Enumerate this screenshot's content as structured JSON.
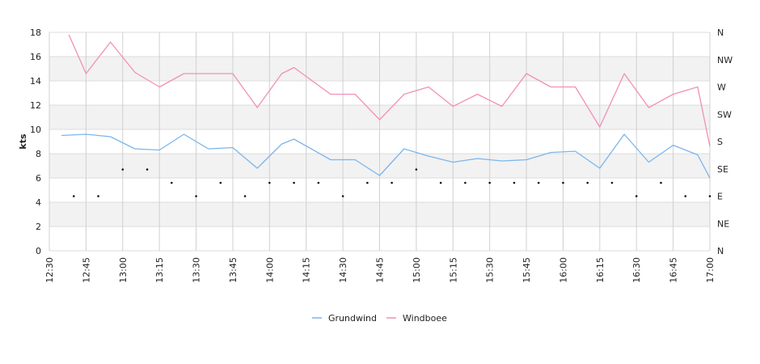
{
  "chart_data": {
    "type": "line",
    "ylabel": "kts",
    "ylim": [
      0,
      18
    ],
    "y_ticks": [
      "0",
      "2",
      "4",
      "6",
      "8",
      "10",
      "12",
      "14",
      "16",
      "18"
    ],
    "right_axis_labels": [
      "N",
      "NE",
      "E",
      "SE",
      "S",
      "SW",
      "W",
      "NW",
      "N"
    ],
    "x_tick_labels": [
      "12:30",
      "12:45",
      "13:00",
      "13:15",
      "13:30",
      "13:45",
      "14:00",
      "14:15",
      "14:30",
      "14:45",
      "15:00",
      "15:15",
      "15:30",
      "15:45",
      "16:00",
      "16:15",
      "16:30",
      "16:45",
      "17:00"
    ],
    "x": [
      "12:40",
      "12:45",
      "12:50",
      "12:55",
      "13:00",
      "13:05",
      "13:10",
      "13:15",
      "13:20",
      "13:25",
      "13:30",
      "13:35",
      "13:40",
      "13:45",
      "13:50",
      "13:55",
      "14:00",
      "14:05",
      "14:10",
      "14:15",
      "14:20",
      "14:25",
      "14:30",
      "14:35",
      "14:40",
      "14:45",
      "14:50",
      "14:55",
      "15:00",
      "15:05",
      "15:10",
      "15:15",
      "15:20",
      "15:25",
      "15:30",
      "15:35",
      "15:40",
      "15:45",
      "15:50",
      "15:55",
      "16:00",
      "16:05",
      "16:10",
      "16:15",
      "16:20",
      "16:25",
      "16:30",
      "16:35",
      "16:40",
      "16:45",
      "16:50",
      "16:55",
      "17:00"
    ],
    "series": [
      {
        "name": "Grundwind",
        "color": "#7cb5ec",
        "x": [
          "12:35",
          "12:45",
          "12:55",
          "13:05",
          "13:15",
          "13:25",
          "13:35",
          "13:45",
          "13:55",
          "14:05",
          "14:10",
          "14:25",
          "14:35",
          "14:45",
          "14:55",
          "15:05",
          "15:15",
          "15:25",
          "15:35",
          "15:45",
          "15:55",
          "16:05",
          "16:15",
          "16:25",
          "16:35",
          "16:45",
          "16:55",
          "17:00"
        ],
        "values": [
          9.5,
          9.6,
          9.4,
          8.4,
          8.3,
          9.6,
          8.4,
          8.5,
          6.8,
          8.8,
          9.2,
          7.5,
          7.5,
          6.2,
          8.4,
          7.8,
          7.3,
          7.6,
          7.4,
          7.5,
          8.1,
          8.2,
          6.8,
          9.6,
          7.3,
          8.7,
          7.9,
          6.0
        ]
      },
      {
        "name": "Windboee",
        "color": "#f28fb8",
        "x": [
          "12:38",
          "12:45",
          "12:55",
          "13:05",
          "13:15",
          "13:25",
          "13:35",
          "13:45",
          "13:55",
          "14:05",
          "14:10",
          "14:25",
          "14:35",
          "14:45",
          "14:55",
          "15:05",
          "15:15",
          "15:25",
          "15:35",
          "15:45",
          "15:55",
          "16:05",
          "16:15",
          "16:25",
          "16:35",
          "16:45",
          "16:55",
          "17:00"
        ],
        "values": [
          17.8,
          14.6,
          17.2,
          14.7,
          13.5,
          14.6,
          14.6,
          14.6,
          11.8,
          14.6,
          15.1,
          12.9,
          12.9,
          10.8,
          12.9,
          13.5,
          11.9,
          12.9,
          11.9,
          14.6,
          13.5,
          13.5,
          10.2,
          14.6,
          11.8,
          12.9,
          13.5,
          8.6
        ]
      }
    ],
    "direction_markers": [
      {
        "x": "12:40",
        "y": 4.5
      },
      {
        "x": "12:50",
        "y": 4.5
      },
      {
        "x": "13:00",
        "y": 6.7
      },
      {
        "x": "13:10",
        "y": 6.7
      },
      {
        "x": "13:20",
        "y": 5.6
      },
      {
        "x": "13:30",
        "y": 4.5
      },
      {
        "x": "13:40",
        "y": 5.6
      },
      {
        "x": "13:50",
        "y": 4.5
      },
      {
        "x": "14:00",
        "y": 5.6
      },
      {
        "x": "14:10",
        "y": 5.6
      },
      {
        "x": "14:20",
        "y": 5.6
      },
      {
        "x": "14:30",
        "y": 4.5
      },
      {
        "x": "14:40",
        "y": 5.6
      },
      {
        "x": "14:50",
        "y": 5.6
      },
      {
        "x": "15:00",
        "y": 6.7
      },
      {
        "x": "15:10",
        "y": 5.6
      },
      {
        "x": "15:20",
        "y": 5.6
      },
      {
        "x": "15:30",
        "y": 5.6
      },
      {
        "x": "15:40",
        "y": 5.6
      },
      {
        "x": "15:50",
        "y": 5.6
      },
      {
        "x": "16:00",
        "y": 5.6
      },
      {
        "x": "16:10",
        "y": 5.6
      },
      {
        "x": "16:20",
        "y": 5.6
      },
      {
        "x": "16:30",
        "y": 4.5
      },
      {
        "x": "16:40",
        "y": 5.6
      },
      {
        "x": "16:50",
        "y": 4.5
      },
      {
        "x": "17:00",
        "y": 4.5
      }
    ],
    "grid": true,
    "legend_position": "bottom"
  }
}
